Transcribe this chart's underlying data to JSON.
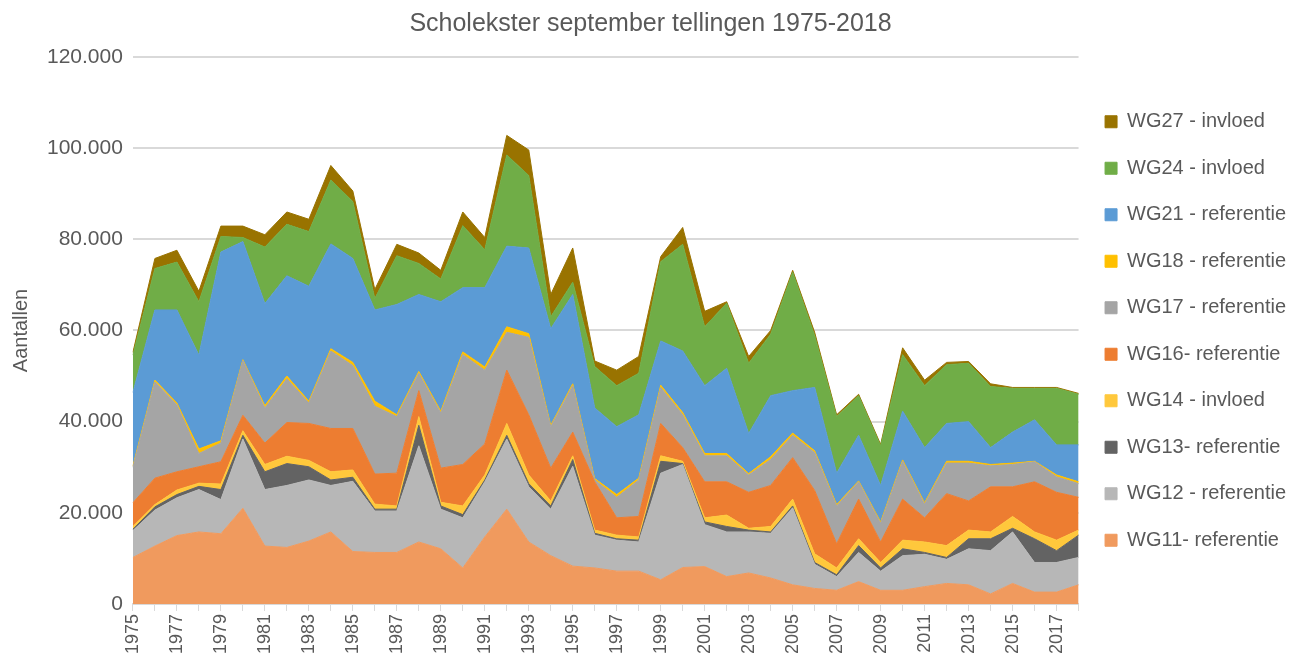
{
  "chart_data": {
    "type": "area",
    "title": "Scholekster september tellingen 1975-2018",
    "ylabel": "Aantallen",
    "stacked": true,
    "grid": "y",
    "legend": "right",
    "categories": [
      "1975",
      null,
      "1977",
      null,
      "1979",
      null,
      "1981",
      null,
      "1983",
      null,
      "1985",
      null,
      "1987",
      null,
      "1989",
      null,
      "1991",
      null,
      "1993",
      null,
      "1995",
      null,
      "1997",
      null,
      "1999",
      null,
      "2001",
      null,
      "2003",
      null,
      "2005",
      null,
      "2007",
      null,
      "2009",
      null,
      "2011",
      null,
      "2013",
      null,
      "2015",
      null,
      "2017",
      null
    ],
    "ylim": [
      0,
      120000
    ],
    "yticks": [
      {
        "value": 0,
        "label": "0"
      },
      {
        "value": 20000,
        "label": "20.000"
      },
      {
        "value": 40000,
        "label": "40.000"
      },
      {
        "value": 60000,
        "label": "60.000"
      },
      {
        "value": 80000,
        "label": "80.000"
      },
      {
        "value": 100000,
        "label": "100.000"
      },
      {
        "value": 120000,
        "label": "120.000"
      }
    ],
    "series": [
      {
        "name": "WG11- referentie",
        "color": "#f09a5e",
        "values": [
          10200,
          12700,
          15000,
          15800,
          15400,
          21000,
          12700,
          12400,
          13800,
          15800,
          11500,
          11300,
          11300,
          13600,
          12100,
          7900,
          14700,
          20800,
          13600,
          10600,
          8300,
          7900,
          7200,
          7200,
          5300,
          8000,
          8200,
          6000,
          6800,
          5700,
          4200,
          3400,
          3000,
          4900,
          3000,
          3000,
          3800,
          4500,
          4200,
          2200,
          4500,
          2600,
          2600,
          4200
        ]
      },
      {
        "name": "WG12 - referentie",
        "color": "#b7b7b7",
        "values": [
          5900,
          7900,
          8300,
          9300,
          7500,
          15200,
          12400,
          13600,
          13400,
          10200,
          15400,
          9100,
          9100,
          21100,
          8700,
          11000,
          12100,
          15400,
          12100,
          10200,
          21900,
          7200,
          6800,
          6400,
          23400,
          22600,
          9200,
          9800,
          9000,
          9800,
          16900,
          5300,
          3000,
          6400,
          4200,
          7600,
          7100,
          5300,
          7900,
          9500,
          11300,
          6500,
          6500,
          6000
        ]
      },
      {
        "name": "WG13- referentie",
        "color": "#636363",
        "values": [
          300,
          700,
          700,
          700,
          2200,
          800,
          3900,
          4800,
          2900,
          1200,
          900,
          400,
          400,
          4500,
          700,
          700,
          400,
          800,
          700,
          700,
          1500,
          400,
          300,
          400,
          2600,
          200,
          600,
          1200,
          400,
          300,
          400,
          400,
          400,
          1500,
          700,
          1500,
          400,
          400,
          2200,
          2600,
          800,
          5200,
          2600,
          4900
        ]
      },
      {
        "name": "WG14 - invloed",
        "color": "#ffc83c",
        "values": [
          600,
          500,
          1000,
          700,
          1200,
          1000,
          1600,
          1600,
          1400,
          1800,
          1600,
          1100,
          700,
          1900,
          800,
          1900,
          1100,
          2600,
          1900,
          1100,
          800,
          700,
          800,
          700,
          1200,
          500,
          900,
          2500,
          400,
          1200,
          1500,
          1900,
          1500,
          1500,
          1200,
          1900,
          2300,
          2600,
          1900,
          1500,
          2600,
          1500,
          2300,
          1100
        ]
      },
      {
        "name": "WG16- referentie",
        "color": "#ed7d31",
        "values": [
          5200,
          5800,
          4000,
          3600,
          4900,
          3400,
          4700,
          7400,
          8100,
          9500,
          9100,
          6600,
          7200,
          5700,
          7500,
          9100,
          6800,
          11700,
          13200,
          7200,
          5200,
          10600,
          3800,
          4500,
          7100,
          3000,
          7900,
          7300,
          7900,
          9000,
          9100,
          13900,
          5300,
          8700,
          4500,
          9000,
          5300,
          11400,
          6400,
          9900,
          6500,
          11000,
          10500,
          7200
        ]
      },
      {
        "name": "WG17 - referentie",
        "color": "#a5a5a5",
        "values": [
          7800,
          21100,
          14700,
          2900,
          4100,
          12000,
          7700,
          9600,
          4500,
          17000,
          13800,
          14900,
          12400,
          3800,
          12100,
          24100,
          16200,
          8300,
          17000,
          9100,
          10200,
          400,
          4500,
          8000,
          7900,
          7200,
          5700,
          5700,
          3800,
          5700,
          4900,
          8300,
          8300,
          3800,
          4100,
          8300,
          3000,
          6700,
          8300,
          4600,
          4900,
          4400,
          3400,
          3000
        ]
      },
      {
        "name": "WG18 - referentie",
        "color": "#ffc000",
        "values": [
          300,
          400,
          400,
          1000,
          500,
          200,
          500,
          600,
          400,
          500,
          700,
          1100,
          400,
          400,
          400,
          600,
          700,
          1200,
          800,
          300,
          400,
          300,
          600,
          400,
          500,
          500,
          500,
          500,
          300,
          600,
          500,
          400,
          300,
          200,
          300,
          300,
          300,
          400,
          400,
          300,
          300,
          100,
          400,
          400
        ]
      },
      {
        "name": "WG21 - referentie",
        "color": "#5b9bd5",
        "values": [
          16100,
          15400,
          20400,
          20600,
          41400,
          25900,
          22400,
          22000,
          25200,
          23000,
          22800,
          20000,
          24200,
          16900,
          24000,
          14100,
          17400,
          17700,
          18800,
          21200,
          19600,
          15500,
          14900,
          13900,
          9700,
          13500,
          14900,
          18700,
          8800,
          13400,
          9300,
          13900,
          6900,
          10000,
          8000,
          10700,
          12100,
          8300,
          8700,
          3700,
          6800,
          9100,
          6600,
          8100
        ]
      },
      {
        "name": "WG24 - invloed",
        "color": "#70ad47",
        "values": [
          8200,
          9100,
          10500,
          11700,
          3400,
          900,
          12400,
          11300,
          12000,
          14000,
          12500,
          2500,
          10700,
          6800,
          5000,
          13600,
          8300,
          20000,
          15900,
          2600,
          2700,
          9100,
          9000,
          9100,
          17400,
          23400,
          12900,
          14300,
          15400,
          13500,
          26000,
          11400,
          12400,
          8700,
          8700,
          12400,
          13600,
          12900,
          12800,
          13400,
          9600,
          6900,
          12400,
          11100
        ]
      },
      {
        "name": "WG27 - invloed",
        "color": "#997300",
        "values": [
          600,
          2200,
          2600,
          2300,
          2300,
          2500,
          2700,
          2700,
          2700,
          3200,
          2300,
          2000,
          2500,
          2300,
          1900,
          3000,
          2700,
          4300,
          5600,
          4900,
          7500,
          1200,
          3400,
          3700,
          1100,
          3700,
          3400,
          300,
          1500,
          800,
          400,
          700,
          400,
          300,
          300,
          1500,
          1200,
          500,
          400,
          600,
          200,
          200,
          200,
          200
        ]
      }
    ]
  }
}
